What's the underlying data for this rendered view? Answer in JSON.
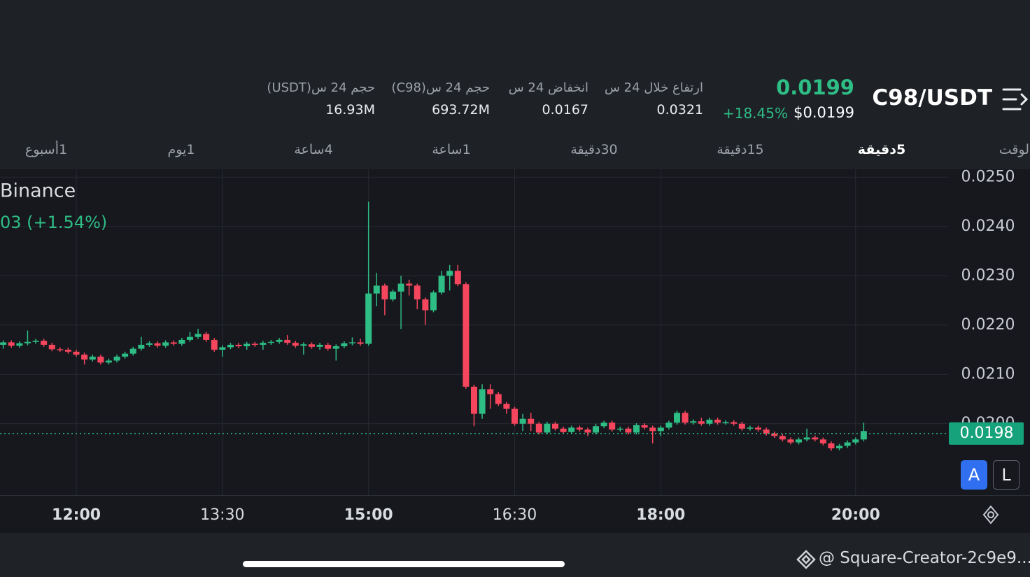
{
  "header": {
    "pair": "C98/USDT",
    "last_price": "0.0199",
    "change": "+18.45%",
    "usd_price": "$0.0199"
  },
  "stats": [
    {
      "label": "ارتفاع خلال 24 س",
      "value": "0.0321"
    },
    {
      "label": "انخفاض 24 س",
      "value": "0.0167"
    },
    {
      "label": "حجم 24 س(C98)",
      "value": "693.72M"
    },
    {
      "label": "حجم 24 س(USDT)",
      "value": "16.93M"
    }
  ],
  "tabs": [
    "الوقت",
    "5دقيقة",
    "15دقيقة",
    "30دقيقة",
    "1ساعة",
    "4ساعة",
    "1يوم",
    "1أسبوع"
  ],
  "chart_data": {
    "type": "candlestick",
    "source": "Binance",
    "change_text": "03 (+1.54%)",
    "up_color": "#2ebd85",
    "down_color": "#f6465d",
    "xlim": [
      673,
      1257
    ],
    "xticks": [
      {
        "value": 720,
        "label": "12:00"
      },
      {
        "value": 810,
        "label": "13:30"
      },
      {
        "value": 900,
        "label": "15:00"
      },
      {
        "value": 990,
        "label": "16:30"
      },
      {
        "value": 1080,
        "label": "18:00"
      },
      {
        "value": 1200,
        "label": "20:00"
      }
    ],
    "ylim": [
      0.01855,
      0.02516
    ],
    "yticks": [
      {
        "value": 0.02,
        "label": "0.0200"
      },
      {
        "value": 0.021,
        "label": "0.0210"
      },
      {
        "value": 0.022,
        "label": "0.0220"
      },
      {
        "value": 0.023,
        "label": "0.0230"
      },
      {
        "value": 0.024,
        "label": "0.0240"
      },
      {
        "value": 0.025,
        "label": "0.0250"
      }
    ],
    "grid": true,
    "price_line": 0.0198,
    "x": [
      675,
      680,
      685,
      690,
      695,
      700,
      705,
      710,
      715,
      720,
      725,
      730,
      735,
      740,
      745,
      750,
      755,
      760,
      765,
      770,
      775,
      780,
      785,
      790,
      795,
      800,
      805,
      810,
      815,
      820,
      825,
      830,
      835,
      840,
      845,
      850,
      855,
      860,
      865,
      870,
      875,
      880,
      885,
      890,
      895,
      900,
      905,
      910,
      915,
      920,
      925,
      930,
      935,
      940,
      945,
      950,
      955,
      960,
      965,
      970,
      975,
      980,
      985,
      990,
      995,
      1000,
      1005,
      1010,
      1015,
      1020,
      1025,
      1030,
      1035,
      1040,
      1045,
      1050,
      1055,
      1060,
      1065,
      1070,
      1075,
      1080,
      1085,
      1090,
      1095,
      1100,
      1105,
      1110,
      1115,
      1120,
      1125,
      1130,
      1135,
      1140,
      1145,
      1150,
      1155,
      1160,
      1165,
      1170,
      1175,
      1180,
      1185,
      1190,
      1195,
      1200,
      1205
    ],
    "open": [
      0.0216,
      0.02165,
      0.02158,
      0.02163,
      0.02166,
      0.02168,
      0.0216,
      0.02151,
      0.0215,
      0.02146,
      0.0214,
      0.0213,
      0.02136,
      0.02124,
      0.02128,
      0.02136,
      0.02142,
      0.02152,
      0.0216,
      0.02163,
      0.02158,
      0.02165,
      0.02162,
      0.0217,
      0.02176,
      0.02182,
      0.0217,
      0.0215,
      0.02155,
      0.0216,
      0.02157,
      0.02162,
      0.0216,
      0.02164,
      0.02166,
      0.0217,
      0.02164,
      0.02158,
      0.02161,
      0.02156,
      0.0216,
      0.02152,
      0.02157,
      0.02163,
      0.02165,
      0.02162,
      0.02264,
      0.0228,
      0.02252,
      0.02268,
      0.02284,
      0.0228,
      0.02252,
      0.0223,
      0.02266,
      0.023,
      0.0231,
      0.02283,
      0.02075,
      0.0202,
      0.0207,
      0.0206,
      0.0204,
      0.0203,
      0.02,
      0.0201,
      0.02,
      0.01982,
      0.02,
      0.0199,
      0.01983,
      0.01992,
      0.01988,
      0.01982,
      0.01995,
      0.02002,
      0.01988,
      0.0199,
      0.01982,
      0.01997,
      0.01992,
      0.01985,
      0.01992,
      0.02002,
      0.02022,
      0.02002,
      0.02005,
      0.02,
      0.02008,
      0.02002,
      0.02003,
      0.02,
      0.0199,
      0.01992,
      0.01988,
      0.0198,
      0.01975,
      0.01968,
      0.01962,
      0.01968,
      0.01972,
      0.01968,
      0.0196,
      0.0195,
      0.01955,
      0.01962,
      0.01968
    ],
    "high": [
      0.02169,
      0.02169,
      0.02167,
      0.02189,
      0.02172,
      0.02172,
      0.02164,
      0.02155,
      0.02154,
      0.0215,
      0.02144,
      0.0214,
      0.0214,
      0.02132,
      0.0214,
      0.02146,
      0.02156,
      0.02176,
      0.02167,
      0.02167,
      0.02169,
      0.02169,
      0.02174,
      0.02186,
      0.02192,
      0.02186,
      0.02174,
      0.02159,
      0.02164,
      0.02164,
      0.02166,
      0.02166,
      0.02168,
      0.0217,
      0.02174,
      0.0218,
      0.02168,
      0.02165,
      0.02165,
      0.02164,
      0.02164,
      0.02161,
      0.02167,
      0.02175,
      0.02172,
      0.0245,
      0.02306,
      0.02284,
      0.02272,
      0.023,
      0.02292,
      0.02284,
      0.02256,
      0.0227,
      0.0231,
      0.02322,
      0.02322,
      0.02287,
      0.02079,
      0.0208,
      0.0208,
      0.02064,
      0.02044,
      0.02034,
      0.0202,
      0.02022,
      0.02004,
      0.02004,
      0.02004,
      0.01994,
      0.01996,
      0.01996,
      0.01992,
      0.02,
      0.02006,
      0.02006,
      0.01994,
      0.01994,
      0.02001,
      0.02001,
      0.01996,
      0.01996,
      0.02006,
      0.02026,
      0.02026,
      0.02009,
      0.02012,
      0.02012,
      0.02012,
      0.02007,
      0.02007,
      0.02004,
      0.01996,
      0.01996,
      0.01992,
      0.01984,
      0.01979,
      0.01972,
      0.01972,
      0.0199,
      0.01976,
      0.01972,
      0.01964,
      0.01959,
      0.01966,
      0.01972,
      0.02002
    ],
    "low": [
      0.02152,
      0.02154,
      0.02154,
      0.02159,
      0.02162,
      0.02156,
      0.02147,
      0.02146,
      0.02142,
      0.02136,
      0.0212,
      0.02126,
      0.0212,
      0.0212,
      0.02124,
      0.02132,
      0.02138,
      0.02148,
      0.02156,
      0.02154,
      0.02154,
      0.02158,
      0.02158,
      0.02166,
      0.02172,
      0.02166,
      0.02146,
      0.02136,
      0.02151,
      0.02153,
      0.0215,
      0.02156,
      0.0215,
      0.0216,
      0.02162,
      0.0216,
      0.02154,
      0.0214,
      0.02152,
      0.0215,
      0.02148,
      0.02128,
      0.02153,
      0.02159,
      0.02158,
      0.02158,
      0.02238,
      0.0222,
      0.02248,
      0.02192,
      0.0226,
      0.02232,
      0.022,
      0.02226,
      0.02262,
      0.0227,
      0.02279,
      0.02071,
      0.01995,
      0.0201,
      0.0203,
      0.02036,
      0.0202,
      0.01996,
      0.01985,
      0.01985,
      0.01978,
      0.01978,
      0.01986,
      0.01979,
      0.01979,
      0.01984,
      0.01975,
      0.01978,
      0.01991,
      0.01984,
      0.01984,
      0.01978,
      0.01978,
      0.01988,
      0.0196,
      0.01975,
      0.01988,
      0.01998,
      0.01998,
      0.01998,
      0.01996,
      0.01996,
      0.01998,
      0.01998,
      0.01996,
      0.01986,
      0.01986,
      0.01984,
      0.01976,
      0.01971,
      0.01964,
      0.01958,
      0.01958,
      0.01964,
      0.01964,
      0.01956,
      0.01945,
      0.01946,
      0.01951,
      0.01958,
      0.01964
    ],
    "close": [
      0.02165,
      0.02158,
      0.02163,
      0.02166,
      0.02168,
      0.0216,
      0.02151,
      0.0215,
      0.02146,
      0.0214,
      0.0213,
      0.02136,
      0.02124,
      0.02128,
      0.02136,
      0.02142,
      0.02152,
      0.0216,
      0.02163,
      0.02158,
      0.02165,
      0.02162,
      0.0217,
      0.02176,
      0.02182,
      0.0217,
      0.0215,
      0.02155,
      0.0216,
      0.02157,
      0.02162,
      0.0216,
      0.02164,
      0.02166,
      0.0217,
      0.02164,
      0.02158,
      0.02161,
      0.02156,
      0.0216,
      0.02152,
      0.02157,
      0.02163,
      0.02165,
      0.02162,
      0.02264,
      0.0228,
      0.02252,
      0.02268,
      0.02284,
      0.0228,
      0.02252,
      0.0223,
      0.02266,
      0.023,
      0.0231,
      0.02283,
      0.02075,
      0.0202,
      0.0207,
      0.0206,
      0.0204,
      0.0203,
      0.02,
      0.0201,
      0.02,
      0.01982,
      0.02,
      0.0199,
      0.01983,
      0.01992,
      0.01988,
      0.01982,
      0.01995,
      0.02002,
      0.01988,
      0.0199,
      0.01982,
      0.01997,
      0.01992,
      0.01985,
      0.01992,
      0.02002,
      0.02022,
      0.02002,
      0.02005,
      0.02,
      0.02008,
      0.02002,
      0.02003,
      0.02,
      0.0199,
      0.01992,
      0.01988,
      0.0198,
      0.01975,
      0.01968,
      0.01962,
      0.01968,
      0.01972,
      0.01968,
      0.0196,
      0.0195,
      0.01955,
      0.01962,
      0.01968,
      0.01985
    ]
  },
  "buttons": [
    "A",
    "L"
  ],
  "footer": "@ Square-Creator-2c9e9..."
}
